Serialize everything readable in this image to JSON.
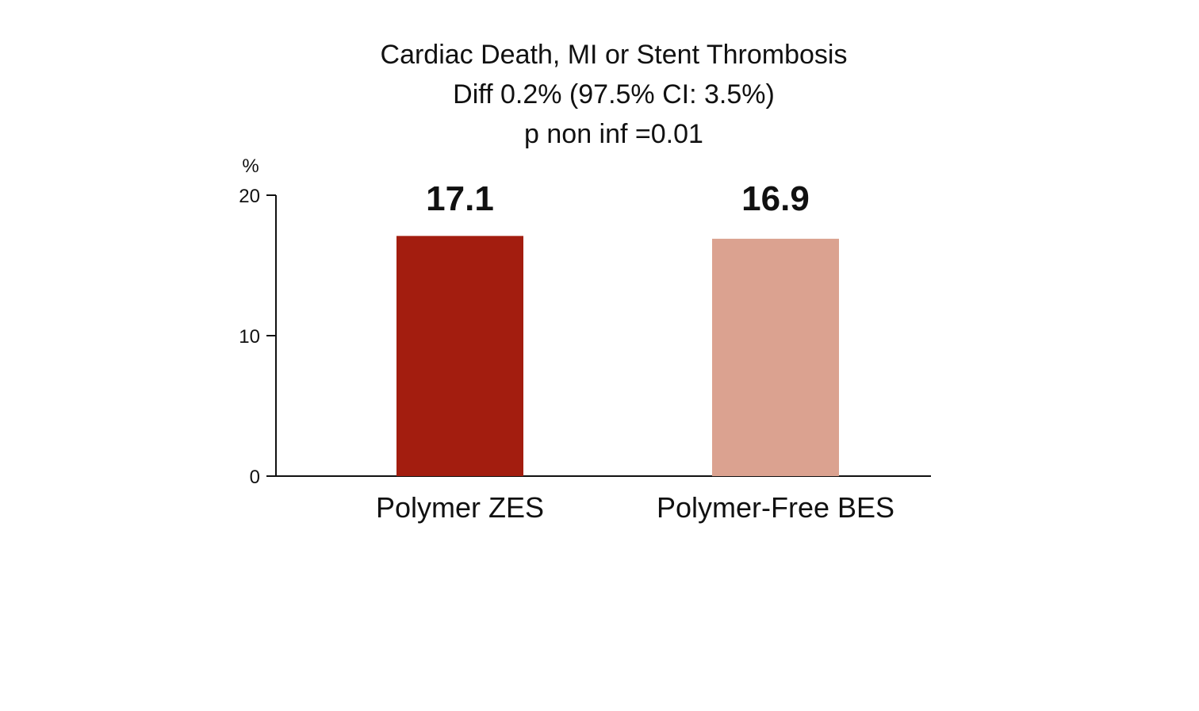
{
  "chart_data": {
    "type": "bar",
    "title": [
      "Cardiac Death, MI or Stent Thrombosis",
      "Diff 0.2% (97.5% CI: 3.5%)",
      "p non inf =0.01"
    ],
    "ylabel": "%",
    "xlabel": "",
    "ylim": [
      0,
      20
    ],
    "yticks": [
      "0",
      "10",
      "20"
    ],
    "categories": [
      "Polymer ZES",
      "Polymer-Free BES"
    ],
    "values": [
      17.1,
      16.9
    ],
    "value_labels": [
      "17.1",
      "16.9"
    ],
    "colors": [
      "#a31d0f",
      "#dba290"
    ],
    "grid": false,
    "legend": "none"
  }
}
